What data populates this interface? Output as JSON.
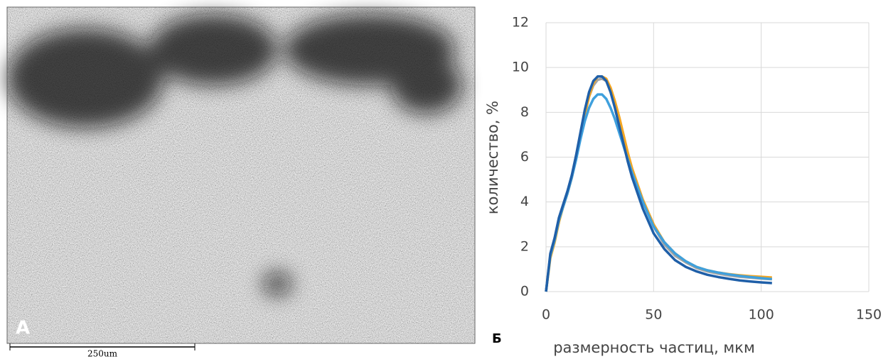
{
  "panel_a": {
    "label": "А",
    "scale_bar": "250um"
  },
  "panel_b": {
    "label": "Б"
  },
  "chart_data": {
    "type": "line",
    "xlabel": "размерность частиц, мкм",
    "ylabel": "количество, %",
    "x": [
      0,
      2,
      4,
      6,
      8,
      10,
      12,
      14,
      16,
      18,
      20,
      22,
      24,
      26,
      28,
      30,
      32,
      34,
      36,
      38,
      40,
      45,
      50,
      55,
      60,
      65,
      70,
      75,
      80,
      85,
      90,
      95,
      100,
      105
    ],
    "series": [
      {
        "color": "#a5a5a5",
        "values": [
          0,
          1.6,
          2.3,
          3.2,
          3.8,
          4.4,
          5.1,
          6.0,
          7.0,
          7.9,
          8.7,
          9.2,
          9.45,
          9.5,
          9.4,
          9.0,
          8.4,
          7.6,
          6.9,
          6.1,
          5.4,
          4.0,
          2.9,
          2.1,
          1.6,
          1.3,
          1.05,
          0.9,
          0.8,
          0.72,
          0.66,
          0.62,
          0.58,
          0.55
        ]
      },
      {
        "color": "#f4a622",
        "values": [
          0,
          1.5,
          2.2,
          3.1,
          3.8,
          4.4,
          5.1,
          6.0,
          6.9,
          7.9,
          8.7,
          9.3,
          9.6,
          9.6,
          9.5,
          9.1,
          8.5,
          7.8,
          7.0,
          6.2,
          5.5,
          4.1,
          3.0,
          2.2,
          1.7,
          1.35,
          1.1,
          0.95,
          0.85,
          0.78,
          0.73,
          0.69,
          0.66,
          0.63
        ]
      },
      {
        "color": "#3fa0dd",
        "values": [
          0,
          1.6,
          2.3,
          3.2,
          3.8,
          4.4,
          5.1,
          5.9,
          6.8,
          7.6,
          8.2,
          8.6,
          8.8,
          8.8,
          8.6,
          8.2,
          7.7,
          7.1,
          6.5,
          5.9,
          5.3,
          4.0,
          2.9,
          2.2,
          1.7,
          1.35,
          1.1,
          0.95,
          0.85,
          0.77,
          0.7,
          0.65,
          0.6,
          0.56
        ]
      },
      {
        "color": "#1f5fa8",
        "values": [
          0,
          1.7,
          2.4,
          3.3,
          3.9,
          4.5,
          5.2,
          6.1,
          7.1,
          8.1,
          8.9,
          9.4,
          9.6,
          9.6,
          9.4,
          8.9,
          8.2,
          7.4,
          6.6,
          5.8,
          5.1,
          3.7,
          2.6,
          1.9,
          1.4,
          1.1,
          0.9,
          0.75,
          0.65,
          0.57,
          0.5,
          0.45,
          0.41,
          0.38
        ]
      }
    ],
    "xlim": [
      0,
      150
    ],
    "xticks": [
      0,
      50,
      100,
      150
    ],
    "ylim": [
      0,
      12
    ],
    "yticks": [
      0,
      2,
      4,
      6,
      8,
      10,
      12
    ],
    "grid": true
  }
}
